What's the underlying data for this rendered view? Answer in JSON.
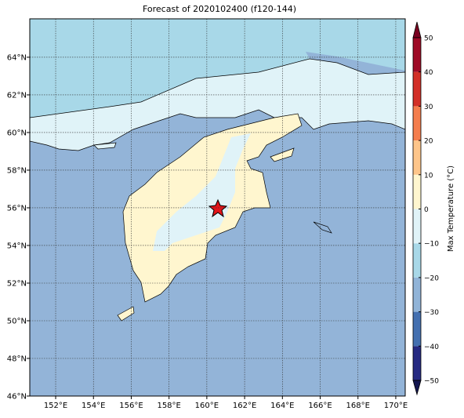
{
  "title": "Forecast of 2020102400 (f120-144)",
  "map": {
    "xlim": [
      150.63,
      170.5
    ],
    "ylim": [
      46,
      66.04
    ],
    "xticks": [
      {
        "value": 152,
        "label": "152°E"
      },
      {
        "value": 154,
        "label": "154°E"
      },
      {
        "value": 156,
        "label": "156°E"
      },
      {
        "value": 158,
        "label": "158°E"
      },
      {
        "value": 160,
        "label": "160°E"
      },
      {
        "value": 162,
        "label": "162°E"
      },
      {
        "value": 164,
        "label": "164°E"
      },
      {
        "value": 166,
        "label": "166°E"
      },
      {
        "value": 168,
        "label": "168°E"
      },
      {
        "value": 170,
        "label": "170°E"
      }
    ],
    "yticks": [
      {
        "value": 46,
        "label": "46°N"
      },
      {
        "value": 48,
        "label": "48°N"
      },
      {
        "value": 50,
        "label": "50°N"
      },
      {
        "value": 52,
        "label": "52°N"
      },
      {
        "value": 54,
        "label": "54°N"
      },
      {
        "value": 56,
        "label": "56°N"
      },
      {
        "value": 58,
        "label": "58°N"
      },
      {
        "value": 60,
        "label": "60°N"
      },
      {
        "value": 62,
        "label": "62°N"
      },
      {
        "value": 64,
        "label": "64°N"
      }
    ],
    "grid": true
  },
  "colorbar": {
    "label": "Max Temperature (°C)",
    "ticks": [
      {
        "value": -50,
        "label": "−50"
      },
      {
        "value": -40,
        "label": "−40"
      },
      {
        "value": -30,
        "label": "−30"
      },
      {
        "value": -20,
        "label": "−20"
      },
      {
        "value": -10,
        "label": "−10"
      },
      0,
      10,
      20,
      30,
      40,
      50
    ],
    "colors": [
      "#262a82",
      "#4470b0",
      "#91b4d8",
      "#a8d8e8",
      "#e0f3f8",
      "#fff6cf",
      "#fdc58a",
      "#f47d4d",
      "#d22f27",
      "#9e0a26"
    ],
    "under_color": "#141650",
    "over_color": "#7a0020"
  }
}
